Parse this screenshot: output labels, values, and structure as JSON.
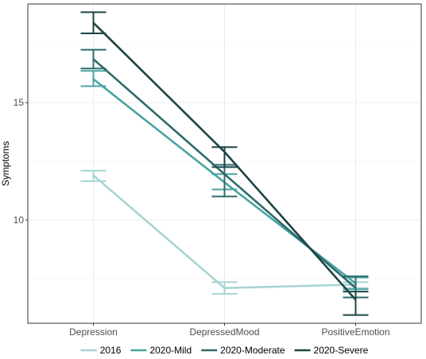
{
  "chart_data": {
    "type": "line",
    "title": "",
    "xlabel": "",
    "ylabel": "Symptoms",
    "categories": [
      "Depression",
      "DepressedMood",
      "PositiveEmotion"
    ],
    "yticks": [
      10,
      15
    ],
    "ylim": [
      5.6,
      19.2
    ],
    "grid": true,
    "legend_position": "bottom",
    "series": [
      {
        "name": "2016",
        "color": "#a7d4d4",
        "values": [
          11.9,
          7.1,
          7.25
        ],
        "error_low": [
          11.65,
          6.85,
          7.1
        ],
        "error_high": [
          12.1,
          7.35,
          7.35
        ]
      },
      {
        "name": "2020-Mild",
        "color": "#4aa3a3",
        "values": [
          16.0,
          11.6,
          7.3
        ],
        "error_low": [
          15.7,
          11.3,
          7.05
        ],
        "error_high": [
          16.35,
          11.95,
          7.55
        ]
      },
      {
        "name": "2020-Moderate",
        "color": "#2e6b6b",
        "values": [
          16.85,
          11.95,
          7.1
        ],
        "error_low": [
          16.45,
          11.0,
          6.7
        ],
        "error_high": [
          17.25,
          12.35,
          7.6
        ]
      },
      {
        "name": "2020-Severe",
        "color": "#1d4444",
        "values": [
          18.4,
          12.9,
          6.6
        ],
        "error_low": [
          17.95,
          12.25,
          5.95
        ],
        "error_high": [
          18.85,
          13.1,
          6.95
        ]
      }
    ]
  }
}
